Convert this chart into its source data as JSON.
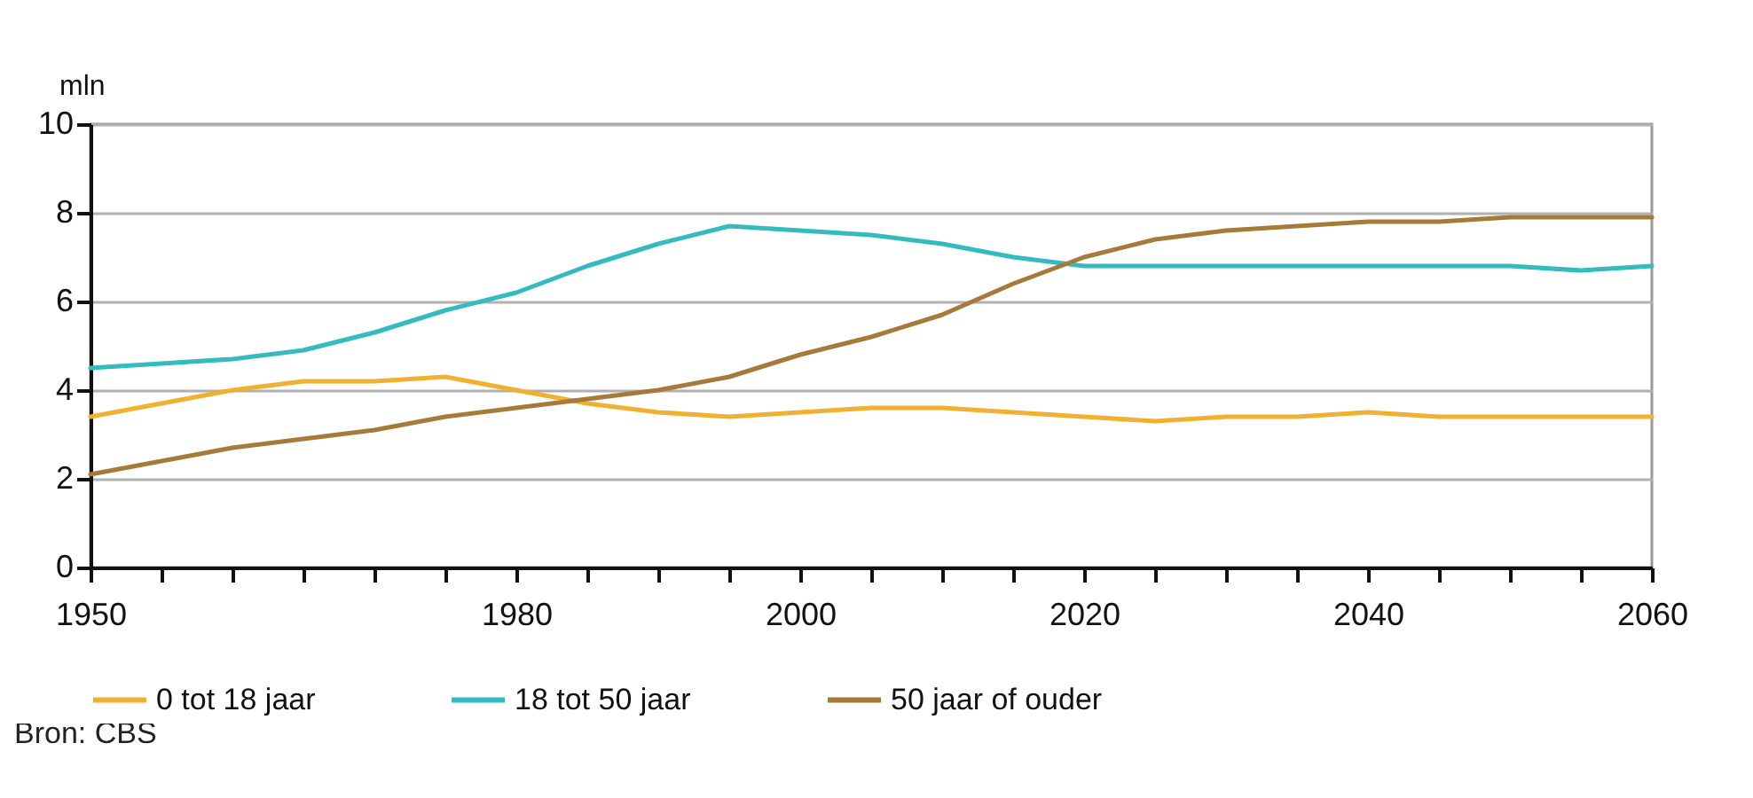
{
  "chart_data": {
    "type": "line",
    "ylabel": "mln",
    "x": [
      1950,
      1955,
      1960,
      1965,
      1970,
      1975,
      1980,
      1985,
      1990,
      1995,
      2000,
      2005,
      2010,
      2015,
      2020,
      2025,
      2030,
      2035,
      2040,
      2045,
      2050,
      2055,
      2060
    ],
    "series": [
      {
        "name": "0 tot 18 jaar",
        "color": "#f0b030",
        "values": [
          3.4,
          3.7,
          4.0,
          4.2,
          4.2,
          4.3,
          4.0,
          3.7,
          3.5,
          3.4,
          3.5,
          3.6,
          3.6,
          3.5,
          3.4,
          3.3,
          3.4,
          3.4,
          3.5,
          3.4,
          3.4,
          3.4,
          3.4
        ]
      },
      {
        "name": "18 tot 50 jaar",
        "color": "#33bbc0",
        "values": [
          4.5,
          4.6,
          4.7,
          4.9,
          5.3,
          5.8,
          6.2,
          6.8,
          7.3,
          7.7,
          7.6,
          7.5,
          7.3,
          7.0,
          6.8,
          6.8,
          6.8,
          6.8,
          6.8,
          6.8,
          6.8,
          6.7,
          6.8
        ]
      },
      {
        "name": "50 jaar of ouder",
        "color": "#a87a3a",
        "values": [
          2.1,
          2.4,
          2.7,
          2.9,
          3.1,
          3.4,
          3.6,
          3.8,
          4.0,
          4.3,
          4.8,
          5.2,
          5.7,
          6.4,
          7.0,
          7.4,
          7.6,
          7.7,
          7.8,
          7.8,
          7.9,
          7.9,
          7.9
        ]
      }
    ],
    "xlim": [
      1950,
      2060
    ],
    "xticks": [
      1950,
      {
        "value": 1955,
        "label": null
      },
      {
        "value": 1960,
        "label": null
      },
      {
        "value": 1965,
        "label": null
      },
      {
        "value": 1970,
        "label": null
      },
      {
        "value": 1975,
        "label": null
      },
      1980,
      {
        "value": 1985,
        "label": null
      },
      {
        "value": 1990,
        "label": null
      },
      {
        "value": 1995,
        "label": null
      },
      2000,
      {
        "value": 2005,
        "label": null
      },
      {
        "value": 2010,
        "label": null
      },
      {
        "value": 2015,
        "label": null
      },
      2020,
      {
        "value": 2025,
        "label": null
      },
      {
        "value": 2030,
        "label": null
      },
      {
        "value": 2035,
        "label": null
      },
      2040,
      {
        "value": 2045,
        "label": null
      },
      {
        "value": 2050,
        "label": null
      },
      {
        "value": 2055,
        "label": null
      },
      2060
    ],
    "ylim": [
      0,
      10
    ],
    "yticks": [
      0,
      2,
      4,
      6,
      8,
      10
    ],
    "grid": "y",
    "legend": "bottom",
    "marker": "none",
    "line_style": "solid",
    "annotations": [
      "Bron: CBS"
    ]
  }
}
